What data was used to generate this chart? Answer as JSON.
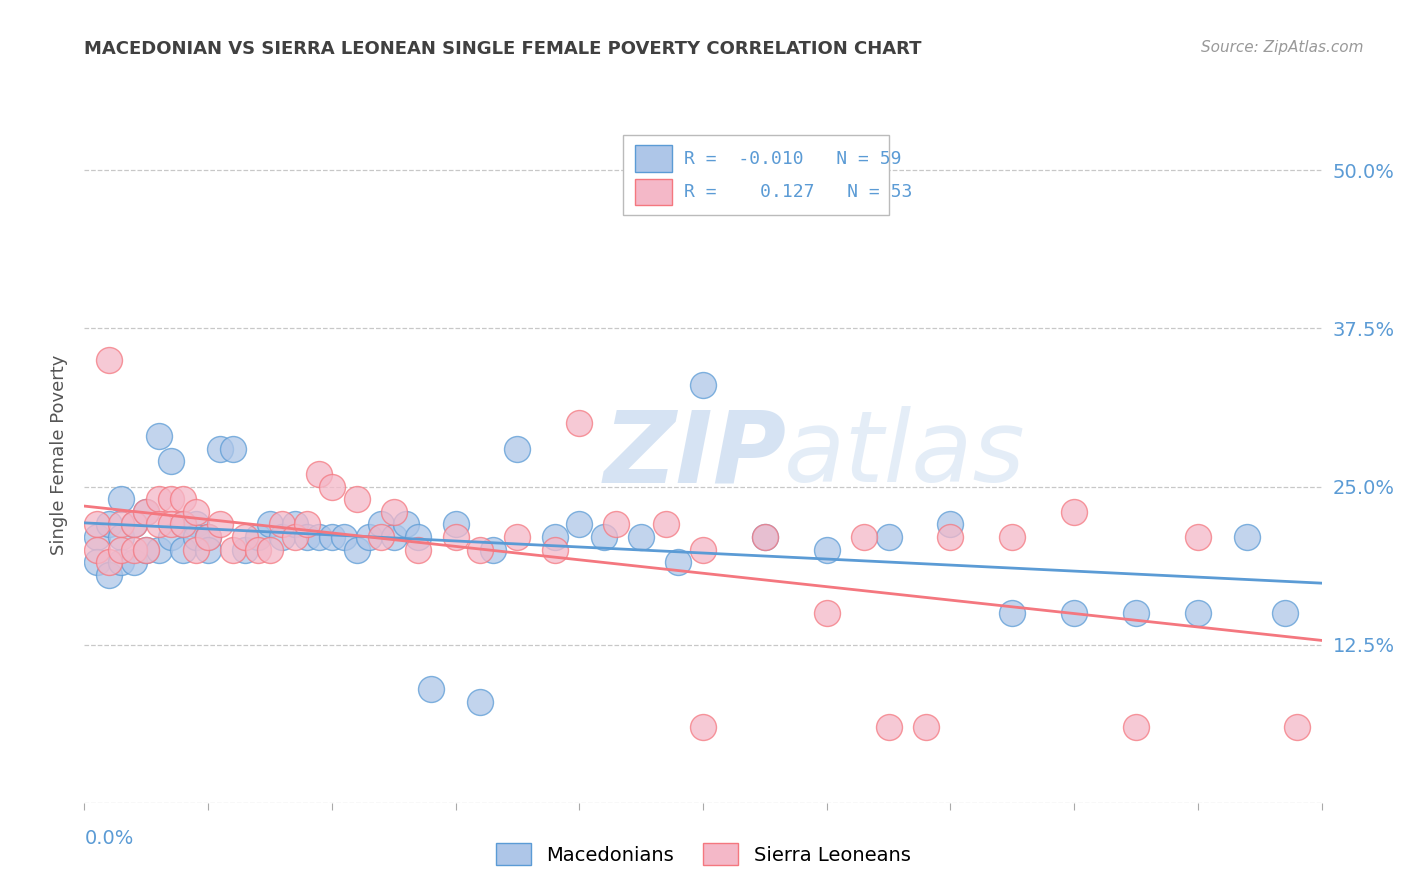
{
  "title": "MACEDONIAN VS SIERRA LEONEAN SINGLE FEMALE POVERTY CORRELATION CHART",
  "source": "Source: ZipAtlas.com",
  "ylabel": "Single Female Poverty",
  "xlim": [
    0.0,
    0.1
  ],
  "ylim": [
    0.0,
    0.55
  ],
  "yticks": [
    0.0,
    0.125,
    0.25,
    0.375,
    0.5
  ],
  "ytick_labels": [
    "",
    "12.5%",
    "25.0%",
    "37.5%",
    "50.0%"
  ],
  "background_color": "#ffffff",
  "grid_color": "#c8c8c8",
  "title_color": "#404040",
  "axis_label_color": "#5b9bd5",
  "watermark_zip": "ZIP",
  "watermark_atlas": "atlas",
  "macedonian_color": "#aec6e8",
  "sierra_color": "#f4b8c8",
  "macedonian_edge_color": "#5b9bd5",
  "sierra_edge_color": "#f4777f",
  "macedonians_x": [
    0.001,
    0.001,
    0.002,
    0.002,
    0.003,
    0.003,
    0.003,
    0.004,
    0.004,
    0.005,
    0.005,
    0.006,
    0.006,
    0.007,
    0.007,
    0.008,
    0.008,
    0.009,
    0.009,
    0.01,
    0.01,
    0.011,
    0.012,
    0.013,
    0.014,
    0.015,
    0.016,
    0.017,
    0.018,
    0.019,
    0.02,
    0.021,
    0.022,
    0.023,
    0.024,
    0.025,
    0.026,
    0.027,
    0.028,
    0.03,
    0.032,
    0.033,
    0.035,
    0.038,
    0.04,
    0.042,
    0.045,
    0.048,
    0.05,
    0.055,
    0.06,
    0.065,
    0.07,
    0.075,
    0.08,
    0.085,
    0.09,
    0.094,
    0.097
  ],
  "macedonians_y": [
    0.21,
    0.19,
    0.22,
    0.18,
    0.24,
    0.21,
    0.19,
    0.22,
    0.19,
    0.23,
    0.2,
    0.29,
    0.2,
    0.27,
    0.21,
    0.22,
    0.2,
    0.22,
    0.21,
    0.21,
    0.2,
    0.28,
    0.28,
    0.2,
    0.21,
    0.22,
    0.21,
    0.22,
    0.21,
    0.21,
    0.21,
    0.21,
    0.2,
    0.21,
    0.22,
    0.21,
    0.22,
    0.21,
    0.09,
    0.22,
    0.08,
    0.2,
    0.28,
    0.21,
    0.22,
    0.21,
    0.21,
    0.19,
    0.33,
    0.21,
    0.2,
    0.21,
    0.22,
    0.15,
    0.15,
    0.15,
    0.15,
    0.21,
    0.15
  ],
  "sierraleonean_x": [
    0.001,
    0.001,
    0.002,
    0.002,
    0.003,
    0.003,
    0.004,
    0.004,
    0.005,
    0.005,
    0.006,
    0.006,
    0.007,
    0.007,
    0.008,
    0.008,
    0.009,
    0.009,
    0.01,
    0.011,
    0.012,
    0.013,
    0.014,
    0.015,
    0.016,
    0.017,
    0.018,
    0.019,
    0.02,
    0.022,
    0.024,
    0.025,
    0.027,
    0.03,
    0.032,
    0.035,
    0.038,
    0.04,
    0.043,
    0.047,
    0.05,
    0.055,
    0.06,
    0.063,
    0.065,
    0.068,
    0.07,
    0.075,
    0.08,
    0.085,
    0.09,
    0.098,
    0.05
  ],
  "sierraleonean_y": [
    0.22,
    0.2,
    0.35,
    0.19,
    0.22,
    0.2,
    0.22,
    0.2,
    0.23,
    0.2,
    0.24,
    0.22,
    0.24,
    0.22,
    0.24,
    0.22,
    0.23,
    0.2,
    0.21,
    0.22,
    0.2,
    0.21,
    0.2,
    0.2,
    0.22,
    0.21,
    0.22,
    0.26,
    0.25,
    0.24,
    0.21,
    0.23,
    0.2,
    0.21,
    0.2,
    0.21,
    0.2,
    0.3,
    0.22,
    0.22,
    0.06,
    0.21,
    0.15,
    0.21,
    0.06,
    0.06,
    0.21,
    0.21,
    0.23,
    0.06,
    0.21,
    0.06,
    0.2
  ]
}
